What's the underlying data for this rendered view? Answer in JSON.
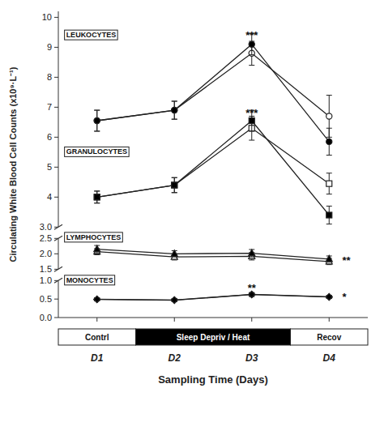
{
  "chart_data": [
    {
      "type": "line",
      "x": [
        1,
        2,
        3,
        4
      ],
      "xlim": [
        0.5,
        4.5
      ],
      "ylim": [
        3.0,
        10.2
      ],
      "yticks": [
        {
          "value": 3.0,
          "label": "3.0"
        },
        4,
        5,
        6,
        7,
        8,
        9,
        10
      ],
      "ylabel": "Circulating White Blood Cell Counts (x10⁹·L⁻¹)",
      "grid": false,
      "series": [
        {
          "marker": "circle",
          "color": "white",
          "values": [
            6.55,
            6.9,
            8.8,
            6.7
          ],
          "errors": [
            0.35,
            0.3,
            0.4,
            0.7
          ]
        },
        {
          "marker": "circle",
          "color": "black",
          "values": [
            6.55,
            6.9,
            9.1,
            5.85
          ],
          "errors": [
            0.35,
            0.3,
            0.35,
            0.45
          ]
        },
        {
          "marker": "square",
          "color": "white",
          "values": [
            4.0,
            4.4,
            6.3,
            4.45
          ],
          "errors": [
            0.2,
            0.25,
            0.4,
            0.35
          ]
        },
        {
          "marker": "square",
          "color": "black",
          "values": [
            4.0,
            4.4,
            6.55,
            3.4
          ],
          "errors": [
            0.2,
            0.25,
            0.35,
            0.3
          ]
        }
      ],
      "annotations": [
        {
          "text": "***",
          "x": 3,
          "y": 9.25
        },
        {
          "text": "***",
          "x": 3,
          "y": 6.67
        }
      ],
      "panel_labels": [
        {
          "text": "LEUKOCYTES",
          "x": 0.58,
          "y": 9.25
        },
        {
          "text": "GRANULOCYTES",
          "x": 0.58,
          "y": 5.35
        }
      ]
    },
    {
      "type": "line",
      "x": [
        1,
        2,
        3,
        4
      ],
      "xlim": [
        0.5,
        4.5
      ],
      "ylim": [
        1.5,
        2.5
      ],
      "yticks": [
        1.5,
        {
          "value": 2.0,
          "label": "2.0"
        },
        2.5
      ],
      "grid": false,
      "series": [
        {
          "marker": "triangle",
          "color": "white",
          "values": [
            2.07,
            1.9,
            1.92,
            1.75
          ],
          "errors": [
            0.1,
            0.1,
            0.12,
            0.1
          ]
        },
        {
          "marker": "triangle",
          "color": "black",
          "values": [
            2.15,
            2.0,
            2.02,
            1.83
          ],
          "errors": [
            0.12,
            0.1,
            0.12,
            0.1
          ]
        }
      ],
      "annotations": [
        {
          "text": "**",
          "x": 4.15,
          "y": 1.76
        }
      ],
      "panel_labels": [
        {
          "text": "LYMPHOCYTES",
          "x": 0.58,
          "y": 2.38
        }
      ]
    },
    {
      "type": "line",
      "x": [
        1,
        2,
        3,
        4
      ],
      "xlim": [
        0.5,
        4.5
      ],
      "ylim": [
        0.0,
        1.0
      ],
      "yticks": [
        {
          "value": 0.0,
          "label": "0.0"
        },
        0.5,
        {
          "value": 1.0,
          "label": "1.0"
        }
      ],
      "xticks": [
        {
          "value": 1,
          "label": "D1"
        },
        {
          "value": 2,
          "label": "D2"
        },
        {
          "value": 3,
          "label": "D3"
        },
        {
          "value": 4,
          "label": "D4"
        }
      ],
      "xlabel": "Sampling Time (Days)",
      "grid": false,
      "series": [
        {
          "marker": "diamond",
          "color": "white",
          "values": [
            0.49,
            0.47,
            0.62,
            0.555
          ],
          "errors": [
            0.04,
            0.04,
            0.05,
            0.04
          ]
        },
        {
          "marker": "diamond",
          "color": "black",
          "values": [
            0.495,
            0.475,
            0.625,
            0.56
          ],
          "errors": [
            0.04,
            0.04,
            0.05,
            0.04
          ]
        }
      ],
      "annotations": [
        {
          "text": "**",
          "x": 3,
          "y": 0.68
        },
        {
          "text": "*",
          "x": 4.15,
          "y": 0.555
        }
      ],
      "panel_labels": [
        {
          "text": "MONOCYTES",
          "x": 0.58,
          "y": 0.88
        }
      ],
      "phases": [
        {
          "label": "Contrl",
          "start": 0.5,
          "end": 1.5,
          "color": "white"
        },
        {
          "label": "Sleep Depriv / Heat",
          "start": 1.5,
          "end": 3.5,
          "color": "black"
        },
        {
          "label": "Recov",
          "start": 3.5,
          "end": 4.5,
          "color": "white"
        }
      ]
    }
  ]
}
